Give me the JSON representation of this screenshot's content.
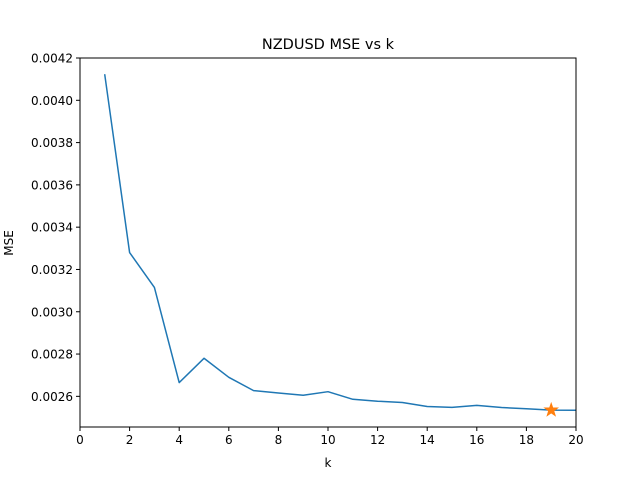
{
  "chart_data": {
    "type": "line",
    "title": "NZDUSD MSE vs k",
    "xlabel": "k",
    "ylabel": "MSE",
    "xlim": [
      0,
      20
    ],
    "ylim": [
      0.002455,
      0.0042
    ],
    "xticks": [
      0,
      2,
      4,
      6,
      8,
      10,
      12,
      14,
      16,
      18,
      20
    ],
    "xtick_labels": [
      "0",
      "2",
      "4",
      "6",
      "8",
      "10",
      "12",
      "14",
      "16",
      "18",
      "20"
    ],
    "yticks": [
      0.0026,
      0.0028,
      0.003,
      0.0032,
      0.0034,
      0.0036,
      0.0038,
      0.004,
      0.0042
    ],
    "ytick_labels": [
      "0.0026",
      "0.0028",
      "0.0030",
      "0.0032",
      "0.0034",
      "0.0036",
      "0.0038",
      "0.0040",
      "0.0042"
    ],
    "grid": false,
    "legend": false,
    "series": [
      {
        "x": [
          1,
          2,
          3,
          4,
          5,
          6,
          7,
          8,
          9,
          10,
          11,
          12,
          13,
          14,
          15,
          16,
          17,
          18,
          19,
          20
        ],
        "y": [
          0.00412,
          0.00328,
          0.003115,
          0.002665,
          0.00278,
          0.00269,
          0.002627,
          0.002616,
          0.002605,
          0.002622,
          0.002586,
          0.002577,
          0.002571,
          0.002552,
          0.002548,
          0.002557,
          0.002547,
          0.002541,
          0.002535,
          0.002534
        ],
        "color": "#1f77b4"
      }
    ],
    "highlight": {
      "x": 19,
      "y": 0.002535,
      "marker": "star",
      "color": "#ff7f0e"
    }
  }
}
